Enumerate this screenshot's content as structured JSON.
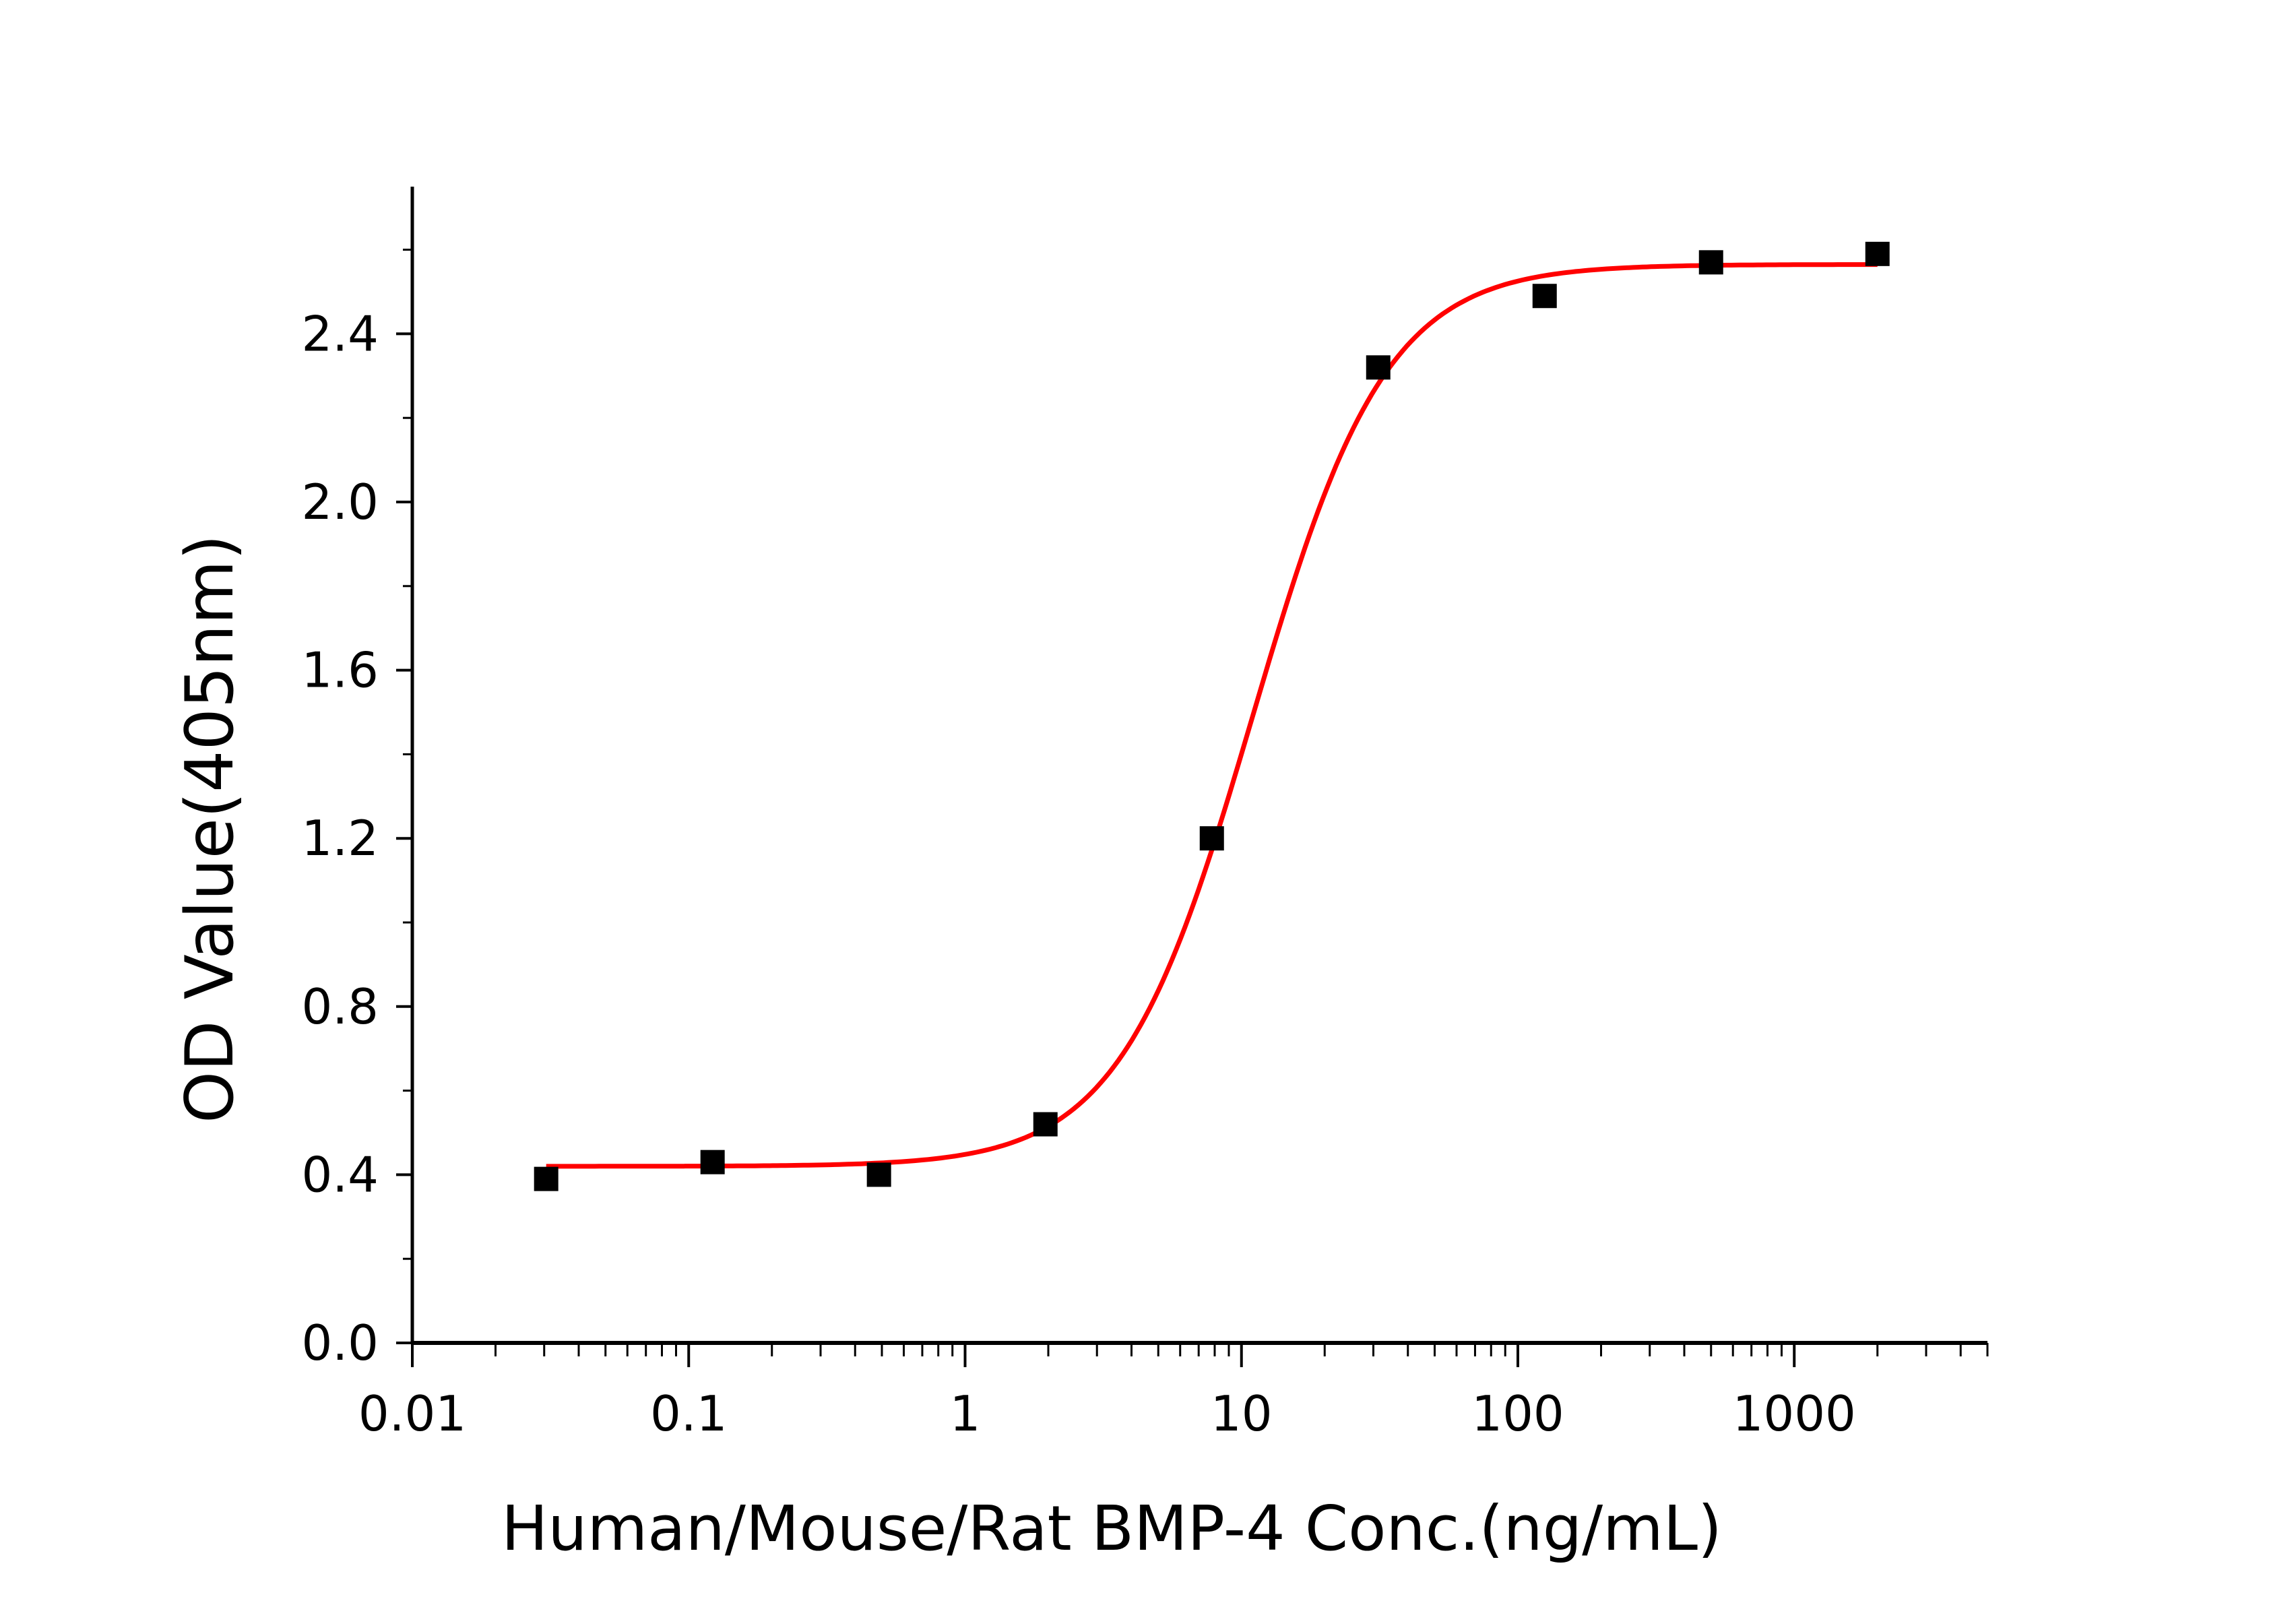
{
  "chart_data": {
    "type": "scatter",
    "title": "",
    "xlabel": "Human/Mouse/Rat BMP-4 Conc.(ng/mL)",
    "ylabel": "OD Value(405nm)",
    "xscale": "log",
    "xlim": [
      0.01,
      5000
    ],
    "ylim": [
      0,
      2.75
    ],
    "xticks": [
      "0.01",
      "0.1",
      "1",
      "10",
      "100",
      "1000"
    ],
    "xtick_values": [
      0.01,
      0.1,
      1,
      10,
      100,
      1000
    ],
    "yticks": [
      "0.0",
      "0.4",
      "0.8",
      "1.2",
      "1.6",
      "2.0",
      "2.4"
    ],
    "ytick_values": [
      0,
      0.4,
      0.8,
      1.2,
      1.6,
      2.0,
      2.4
    ],
    "grid": false,
    "legend": "none",
    "series": [
      {
        "marker": "square",
        "color": "#000000",
        "x": [
          0.0305,
          0.122,
          0.488,
          1.953,
          7.8125,
          31.25,
          125,
          500,
          2000
        ],
        "y": [
          0.39,
          0.43,
          0.4,
          0.52,
          1.2,
          2.32,
          2.49,
          2.57,
          2.59
        ]
      }
    ],
    "fit": {
      "type": "4PL",
      "color": "#ff0000",
      "bottom": 0.42,
      "top": 2.565,
      "ec50": 11,
      "hill": 1.8,
      "x_range": [
        0.0305,
        2000
      ]
    }
  }
}
